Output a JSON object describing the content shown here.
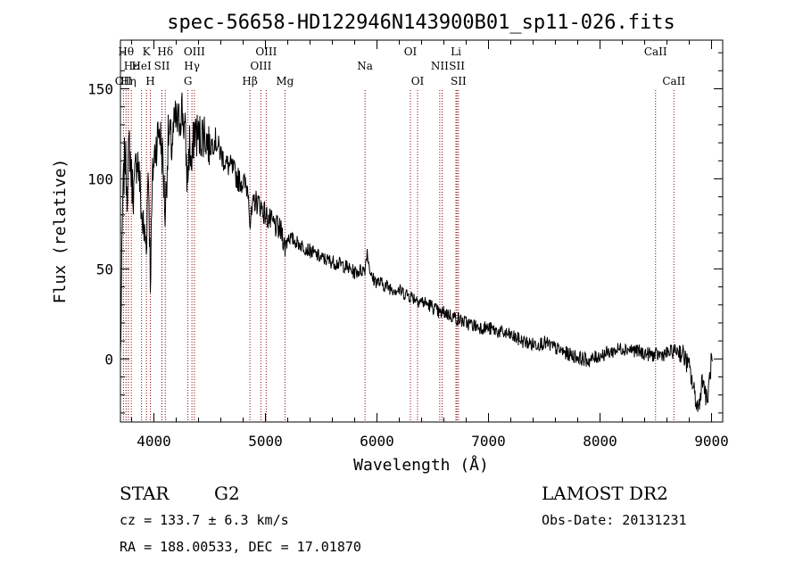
{
  "chart_data": {
    "type": "line",
    "title": "spec-56658-HD122946N143900B01_sp11-026.fits",
    "xlabel": "Wavelength (Å)",
    "ylabel": "Flux (relative)",
    "xlim": [
      3700,
      9100
    ],
    "ylim": [
      -35,
      177
    ],
    "x_ticks": [
      4000,
      5000,
      6000,
      7000,
      8000,
      9000
    ],
    "y_ticks": [
      0,
      50,
      100,
      150
    ],
    "grid": false,
    "series_color": "#000000",
    "line_color": "#8b0000",
    "anchors": [
      [
        3700,
        0
      ],
      [
        3720,
        85
      ],
      [
        3740,
        115
      ],
      [
        3760,
        95
      ],
      [
        3780,
        120
      ],
      [
        3800,
        100
      ],
      [
        3820,
        92
      ],
      [
        3850,
        115
      ],
      [
        3870,
        100
      ],
      [
        3890,
        80
      ],
      [
        3910,
        70
      ],
      [
        3933,
        65
      ],
      [
        3950,
        110
      ],
      [
        3968,
        45
      ],
      [
        3990,
        105
      ],
      [
        4020,
        120
      ],
      [
        4050,
        128
      ],
      [
        4080,
        110
      ],
      [
        4101,
        80
      ],
      [
        4130,
        125
      ],
      [
        4160,
        118
      ],
      [
        4190,
        132
      ],
      [
        4220,
        130
      ],
      [
        4250,
        140
      ],
      [
        4280,
        125
      ],
      [
        4300,
        98
      ],
      [
        4320,
        120
      ],
      [
        4340,
        103
      ],
      [
        4360,
        128
      ],
      [
        4400,
        123
      ],
      [
        4450,
        126
      ],
      [
        4500,
        118
      ],
      [
        4550,
        122
      ],
      [
        4600,
        114
      ],
      [
        4650,
        108
      ],
      [
        4700,
        106
      ],
      [
        4750,
        100
      ],
      [
        4800,
        98
      ],
      [
        4850,
        94
      ],
      [
        4861,
        74
      ],
      [
        4900,
        88
      ],
      [
        4950,
        86
      ],
      [
        5000,
        80
      ],
      [
        5050,
        76
      ],
      [
        5100,
        73
      ],
      [
        5150,
        70
      ],
      [
        5175,
        62
      ],
      [
        5200,
        68
      ],
      [
        5300,
        64
      ],
      [
        5400,
        60
      ],
      [
        5500,
        56
      ],
      [
        5600,
        54
      ],
      [
        5700,
        52
      ],
      [
        5800,
        48
      ],
      [
        5893,
        50
      ],
      [
        5910,
        60
      ],
      [
        5950,
        45
      ],
      [
        6000,
        43
      ],
      [
        6100,
        40
      ],
      [
        6200,
        38
      ],
      [
        6300,
        35
      ],
      [
        6400,
        32
      ],
      [
        6500,
        29
      ],
      [
        6563,
        25
      ],
      [
        6600,
        26
      ],
      [
        6700,
        23
      ],
      [
        6800,
        20
      ],
      [
        6900,
        18
      ],
      [
        7000,
        17
      ],
      [
        7100,
        15
      ],
      [
        7200,
        13
      ],
      [
        7300,
        10
      ],
      [
        7400,
        8
      ],
      [
        7500,
        9
      ],
      [
        7600,
        6
      ],
      [
        7700,
        3
      ],
      [
        7800,
        1
      ],
      [
        7900,
        -1
      ],
      [
        8000,
        2
      ],
      [
        8100,
        4
      ],
      [
        8200,
        6
      ],
      [
        8300,
        5
      ],
      [
        8400,
        3
      ],
      [
        8500,
        2
      ],
      [
        8600,
        3
      ],
      [
        8700,
        5
      ],
      [
        8750,
        2
      ],
      [
        8800,
        -5
      ],
      [
        8850,
        -20
      ],
      [
        8880,
        -28
      ],
      [
        8920,
        -10
      ],
      [
        8960,
        -25
      ],
      [
        9000,
        0
      ],
      [
        9010,
        -5
      ]
    ],
    "lines": [
      {
        "w": 3727,
        "label": "OII",
        "row": 3
      },
      {
        "w": 3750,
        "label": "Hθ",
        "row": 1
      },
      {
        "w": 3771,
        "label": "Hη",
        "row": 3
      },
      {
        "w": 3797,
        "label": "Hε",
        "row": 2
      },
      {
        "w": 3889,
        "label": "HeI",
        "row": 2
      },
      {
        "w": 3933,
        "label": "K",
        "row": 1
      },
      {
        "w": 3968,
        "label": "H",
        "row": 3
      },
      {
        "w": 4072,
        "label": "SII",
        "row": 2
      },
      {
        "w": 4102,
        "label": "Hδ",
        "row": 1
      },
      {
        "w": 4305,
        "label": "G",
        "row": 3
      },
      {
        "w": 4341,
        "label": "Hγ",
        "row": 2
      },
      {
        "w": 4363,
        "label": "OIII",
        "row": 1
      },
      {
        "w": 4861,
        "label": "Hβ",
        "row": 3
      },
      {
        "w": 4959,
        "label": "OIII",
        "row": 2
      },
      {
        "w": 5007,
        "label": "OIII",
        "row": 1
      },
      {
        "w": 5175,
        "label": "Mg",
        "row": 3
      },
      {
        "w": 5893,
        "label": "Na",
        "row": 2
      },
      {
        "w": 6300,
        "label": "OI",
        "row": 1
      },
      {
        "w": 6364,
        "label": "OI",
        "row": 3
      },
      {
        "w": 6563,
        "label": "NII",
        "row": 2
      },
      {
        "w": 6584,
        "label": "",
        "row": 0
      },
      {
        "w": 6708,
        "label": "Li",
        "row": 1
      },
      {
        "w": 6717,
        "label": "SII",
        "row": 2
      },
      {
        "w": 6731,
        "label": "SII",
        "row": 3
      },
      {
        "w": 8498,
        "label": "CaII",
        "row": 1
      },
      {
        "w": 8662,
        "label": "CaII",
        "row": 3
      }
    ]
  },
  "info": {
    "class_label": "STAR",
    "subclass": "G2",
    "cz": "cz = 133.7 ± 6.3 km/s",
    "coords": "RA = 188.00533, DEC =  17.01870",
    "survey": "LAMOST DR2",
    "obs_date": "Obs-Date: 20131231"
  }
}
